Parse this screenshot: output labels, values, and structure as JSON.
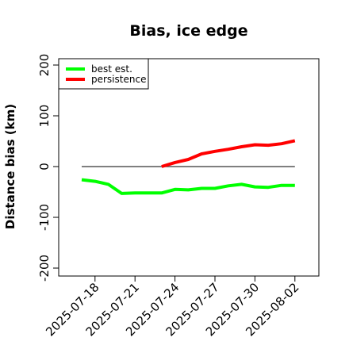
{
  "chart_data": {
    "type": "line",
    "title": "Bias, ice edge",
    "xlabel": "",
    "ylabel": "Distance bias (km)",
    "ylim": [
      -210,
      210
    ],
    "yticks": [
      -200,
      -100,
      0,
      100,
      200
    ],
    "yticklabels": [
      "-200",
      "-100",
      "0",
      "100",
      "200"
    ],
    "xticks": [
      "2025-07-18",
      "2025-07-21",
      "2025-07-24",
      "2025-07-27",
      "2025-07-30",
      "2025-08-02"
    ],
    "reference_line": {
      "y": 0,
      "from": "2025-07-17",
      "to": "2025-08-02",
      "color": "#555555"
    },
    "legend": {
      "position": "top-left"
    },
    "series": [
      {
        "name": "best est.",
        "color": "#00ff00",
        "x": [
          "2025-07-17",
          "2025-07-18",
          "2025-07-19",
          "2025-07-20",
          "2025-07-21",
          "2025-07-22",
          "2025-07-23",
          "2025-07-24",
          "2025-07-25",
          "2025-07-26",
          "2025-07-27",
          "2025-07-28",
          "2025-07-29",
          "2025-07-30",
          "2025-07-31",
          "2025-08-01",
          "2025-08-02"
        ],
        "values": [
          -26,
          -29,
          -35,
          -53,
          -52,
          -52,
          -52,
          -45,
          -46,
          -43,
          -43,
          -38,
          -35,
          -40,
          -41,
          -37,
          -37
        ]
      },
      {
        "name": "persistence",
        "color": "#ff0000",
        "x": [
          "2025-07-23",
          "2025-07-24",
          "2025-07-25",
          "2025-07-26",
          "2025-07-27",
          "2025-07-28",
          "2025-07-29",
          "2025-07-30",
          "2025-07-31",
          "2025-08-01",
          "2025-08-02"
        ],
        "values": [
          0,
          8,
          14,
          25,
          30,
          34,
          39,
          43,
          42,
          45,
          51
        ]
      }
    ]
  }
}
